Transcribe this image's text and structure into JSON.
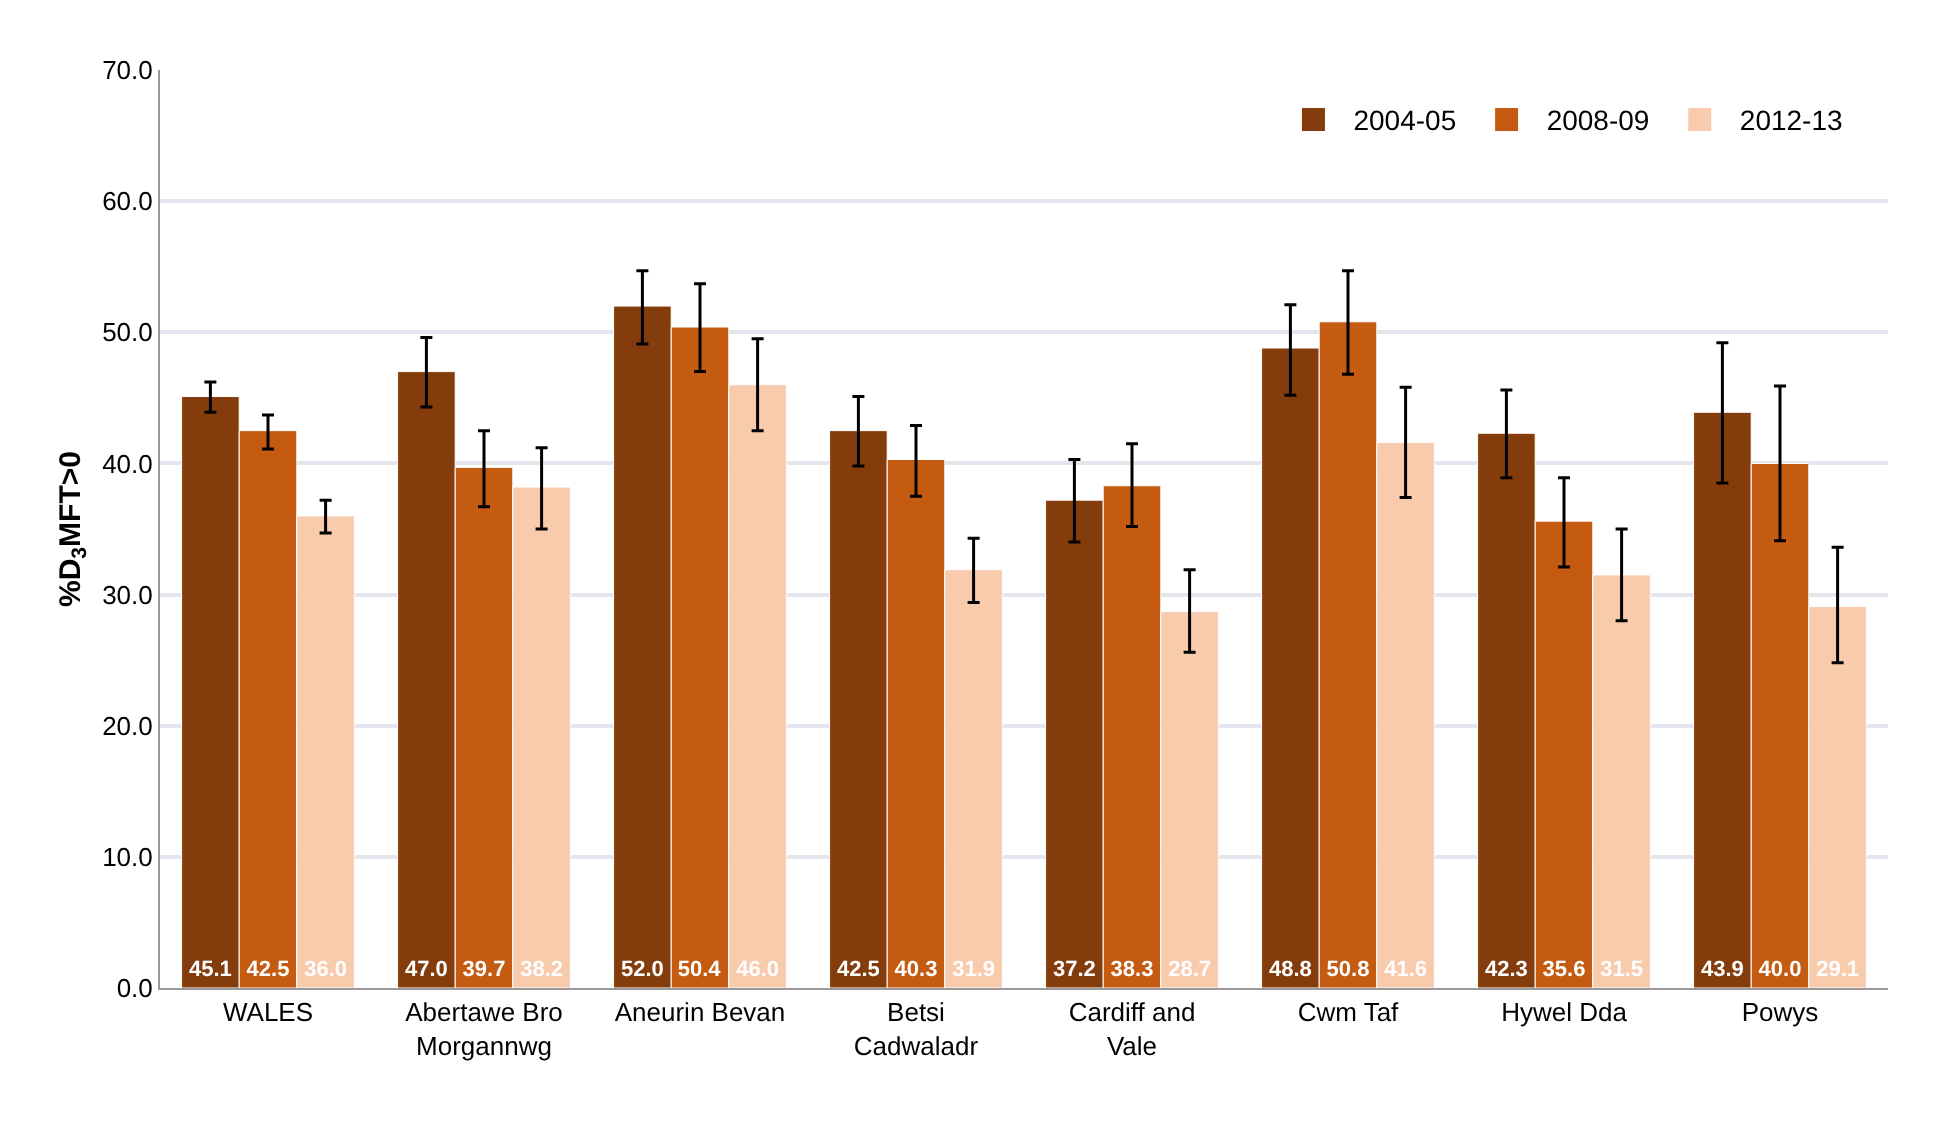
{
  "chart_data": {
    "type": "bar",
    "ylabel": "%D$_{3}$MFT>0",
    "categories": [
      "WALES",
      "Abertawe Bro Morgannwg",
      "Aneurin Bevan",
      "Betsi Cadwaladr",
      "Cardiff and Vale",
      "Cwm Taf",
      "Hywel Dda",
      "Powys"
    ],
    "series": [
      {
        "name": "2004-05",
        "color": "#843c0c",
        "values": [
          45.1,
          47.0,
          52.0,
          42.5,
          37.2,
          48.8,
          42.3,
          43.9
        ],
        "value_labels": [
          "45.1",
          "47.0",
          "52.0",
          "42.5",
          "37.2",
          "48.8",
          "42.3",
          "43.9"
        ],
        "errors": [
          [
            43.9,
            46.2
          ],
          [
            44.3,
            49.6
          ],
          [
            49.1,
            54.7
          ],
          [
            39.8,
            45.1
          ],
          [
            34.0,
            40.3
          ],
          [
            45.2,
            52.1
          ],
          [
            38.9,
            45.6
          ],
          [
            38.5,
            49.2
          ]
        ]
      },
      {
        "name": "2008-09",
        "color": "#c55a11",
        "values": [
          42.5,
          39.7,
          50.4,
          40.3,
          38.3,
          50.8,
          35.6,
          40.0
        ],
        "value_labels": [
          "42.5",
          "39.7",
          "50.4",
          "40.3",
          "38.3",
          "50.8",
          "35.6",
          "40.0"
        ],
        "errors": [
          [
            41.1,
            43.7
          ],
          [
            36.7,
            42.5
          ],
          [
            47.0,
            53.7
          ],
          [
            37.5,
            42.9
          ],
          [
            35.2,
            41.5
          ],
          [
            46.8,
            54.7
          ],
          [
            32.1,
            38.9
          ],
          [
            34.1,
            45.9
          ]
        ]
      },
      {
        "name": "2012-13",
        "color": "#f8cbad",
        "values": [
          36.0,
          38.2,
          46.0,
          31.9,
          28.7,
          41.6,
          31.5,
          29.1
        ],
        "value_labels": [
          "36.0",
          "38.2",
          "46.0",
          "31.9",
          "28.7",
          "41.6",
          "31.5",
          "29.1"
        ],
        "errors": [
          [
            34.7,
            37.2
          ],
          [
            35.0,
            41.2
          ],
          [
            42.5,
            49.5
          ],
          [
            29.4,
            34.3
          ],
          [
            25.6,
            31.9
          ],
          [
            37.4,
            45.8
          ],
          [
            28.0,
            35.0
          ],
          [
            24.8,
            33.6
          ]
        ]
      }
    ],
    "ylim": [
      0,
      70
    ],
    "yticks": [
      {
        "value": 0,
        "label": "0.0"
      },
      {
        "value": 10,
        "label": "10.0"
      },
      {
        "value": 20,
        "label": "20.0"
      },
      {
        "value": 30,
        "label": "30.0"
      },
      {
        "value": 40,
        "label": "40.0"
      },
      {
        "value": 50,
        "label": "50.0"
      },
      {
        "value": 60,
        "label": "60.0"
      },
      {
        "value": 70,
        "label": "70.0"
      }
    ],
    "grid": "y",
    "legend": "top right"
  }
}
